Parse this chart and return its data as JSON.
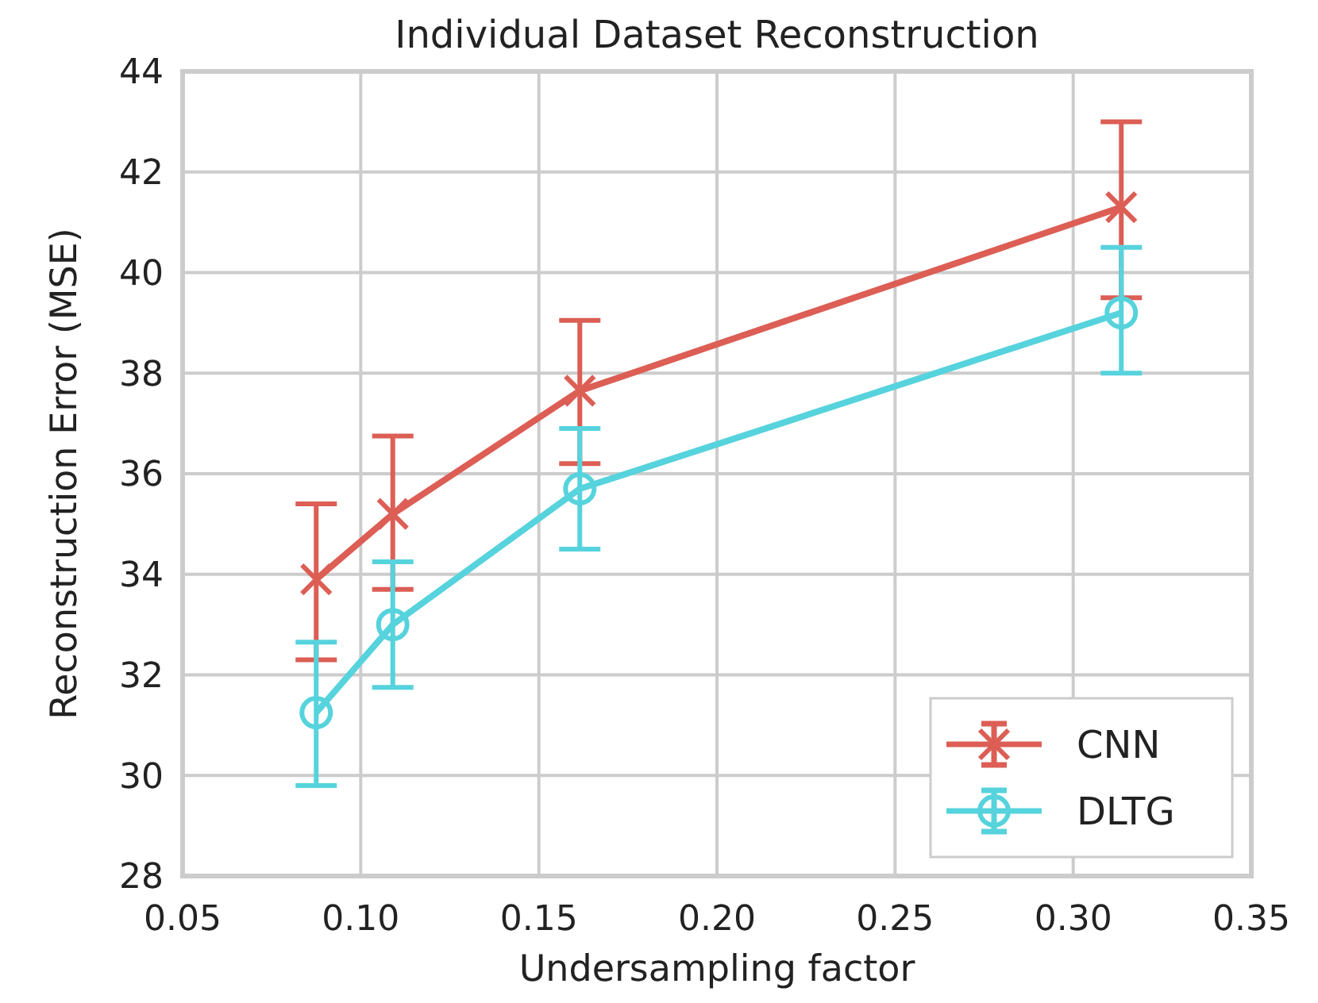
{
  "chart_data": {
    "type": "line",
    "title": "Individual Dataset Reconstruction",
    "xlabel": "Undersampling factor",
    "ylabel": "Reconstruction Error (MSE)",
    "x": [
      0.0875,
      0.109,
      0.1615,
      0.3135
    ],
    "series": [
      {
        "name": "CNN",
        "color": "#dc5e55",
        "marker": "cross",
        "values": [
          33.9,
          35.2,
          37.65,
          41.3
        ],
        "errors": [
          [
            32.3,
            35.4
          ],
          [
            33.7,
            36.75
          ],
          [
            36.2,
            39.05
          ],
          [
            39.5,
            43.0
          ]
        ]
      },
      {
        "name": "DLTG",
        "color": "#56d3dc",
        "marker": "circle",
        "values": [
          31.25,
          33.0,
          35.7,
          39.2
        ],
        "errors": [
          [
            29.8,
            32.65
          ],
          [
            31.75,
            34.25
          ],
          [
            34.5,
            36.9
          ],
          [
            38.0,
            40.5
          ]
        ]
      }
    ],
    "xlim": [
      0.05,
      0.35
    ],
    "xticks": [
      {
        "value": 0.05,
        "label": "0.05"
      },
      {
        "value": 0.1,
        "label": "0.10"
      },
      {
        "value": 0.15,
        "label": "0.15"
      },
      {
        "value": 0.2,
        "label": "0.20"
      },
      {
        "value": 0.25,
        "label": "0.25"
      },
      {
        "value": 0.3,
        "label": "0.30"
      },
      {
        "value": 0.35,
        "label": "0.35"
      }
    ],
    "ylim": [
      28,
      44
    ],
    "yticks": [
      28,
      30,
      32,
      34,
      36,
      38,
      40,
      42,
      44
    ],
    "grid": true,
    "legend": "bottom right"
  }
}
